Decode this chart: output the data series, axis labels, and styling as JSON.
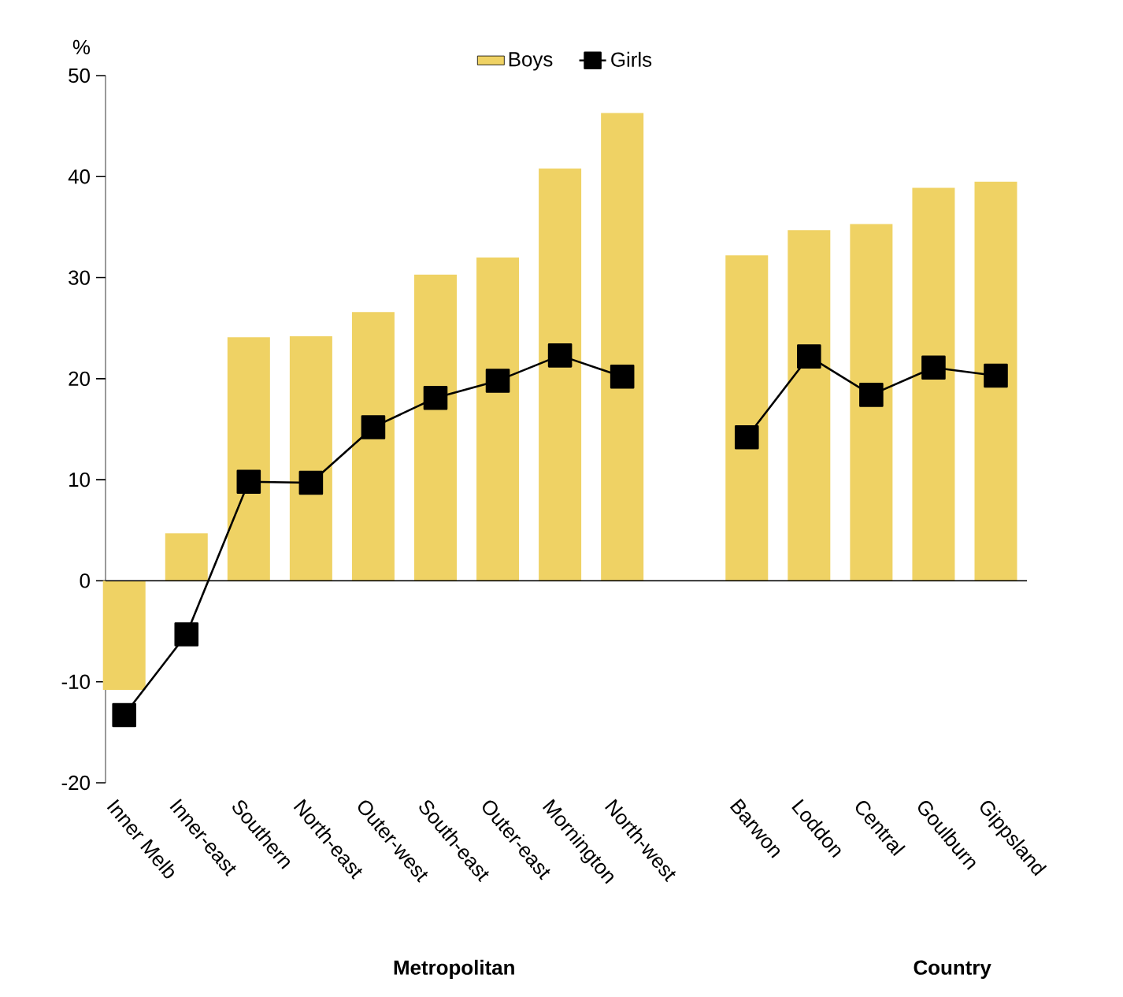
{
  "chart_data": {
    "type": "bar",
    "ylabel": "%",
    "categories": [
      "Inner Melb",
      "Inner-east",
      "Southern",
      "North-east",
      "Outer-west",
      "South-east",
      "Outer-east",
      "Mornington",
      "North-west",
      null,
      "Barwon",
      "Loddon",
      "Central",
      "Goulburn",
      "Gippsland"
    ],
    "series": [
      {
        "name": "Boys",
        "color": "#efd264",
        "values": [
          -10.8,
          4.7,
          24.1,
          24.2,
          26.6,
          30.3,
          32.0,
          40.8,
          46.3,
          null,
          32.2,
          34.7,
          35.3,
          38.9,
          39.5
        ]
      },
      {
        "name": "Girls",
        "type": "line",
        "marker": "square",
        "color": "#000000",
        "values": [
          -13.3,
          -5.3,
          9.8,
          9.7,
          15.2,
          18.1,
          19.8,
          22.3,
          20.2,
          null,
          14.2,
          22.2,
          18.4,
          21.1,
          20.3
        ]
      }
    ],
    "ylim": [
      -20,
      50
    ],
    "yticks": [
      -20,
      -10,
      0,
      10,
      20,
      30,
      40,
      50
    ],
    "legend": "top",
    "annotations": [
      "Metropolitan",
      "Country"
    ]
  }
}
